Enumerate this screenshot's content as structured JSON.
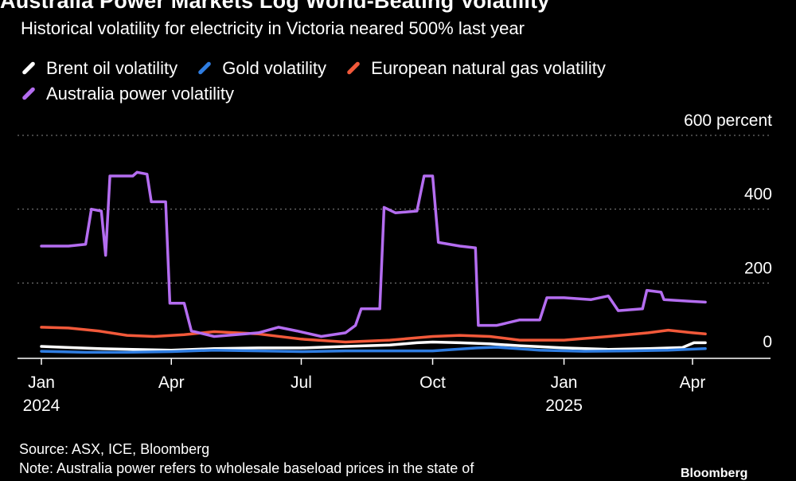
{
  "header": {
    "title": "Australia Power Markets Log World-Beating Volatility",
    "subtitle": "Historical volatility for electricity in Victoria neared 500% last year"
  },
  "footer": {
    "source": "Source: ASX, ICE, Bloomberg",
    "note": "Note: Australia power refers to wholesale baseload prices in the state of",
    "brand": "Bloomberg"
  },
  "chart_data": {
    "type": "line",
    "ylabel": "percent",
    "ylim": [
      0,
      600
    ],
    "yticks": [
      {
        "value": 600,
        "label": "600 percent"
      },
      {
        "value": 400,
        "label": "400"
      },
      {
        "value": 200,
        "label": "200"
      },
      {
        "value": 0,
        "label": "0"
      }
    ],
    "xlim": [
      "2024-01-01",
      "2025-04-10"
    ],
    "xticks": [
      {
        "date": "2024-01-01",
        "label": "Jan",
        "sublabel": "2024"
      },
      {
        "date": "2024-04-01",
        "label": "Apr",
        "sublabel": ""
      },
      {
        "date": "2024-07-01",
        "label": "Jul",
        "sublabel": ""
      },
      {
        "date": "2024-10-01",
        "label": "Oct",
        "sublabel": ""
      },
      {
        "date": "2025-01-01",
        "label": "Jan",
        "sublabel": "2025"
      },
      {
        "date": "2025-04-01",
        "label": "Apr",
        "sublabel": ""
      }
    ],
    "grid": "horizontal dotted",
    "legend_position": "top",
    "series": [
      {
        "name": "Brent oil volatility",
        "color": "#ffffff",
        "points": [
          [
            "2024-01-01",
            28
          ],
          [
            "2024-01-20",
            25
          ],
          [
            "2024-02-10",
            22
          ],
          [
            "2024-03-05",
            20
          ],
          [
            "2024-04-01",
            18
          ],
          [
            "2024-05-01",
            22
          ],
          [
            "2024-06-01",
            24
          ],
          [
            "2024-07-01",
            24
          ],
          [
            "2024-08-01",
            28
          ],
          [
            "2024-09-01",
            32
          ],
          [
            "2024-09-20",
            38
          ],
          [
            "2024-10-01",
            40
          ],
          [
            "2024-10-20",
            38
          ],
          [
            "2024-11-10",
            35
          ],
          [
            "2024-12-01",
            30
          ],
          [
            "2025-01-01",
            24
          ],
          [
            "2025-02-01",
            20
          ],
          [
            "2025-03-01",
            22
          ],
          [
            "2025-03-25",
            25
          ],
          [
            "2025-04-02",
            38
          ],
          [
            "2025-04-10",
            38
          ]
        ]
      },
      {
        "name": "Gold volatility",
        "color": "#2f7de1",
        "points": [
          [
            "2024-01-01",
            15
          ],
          [
            "2024-02-01",
            12
          ],
          [
            "2024-03-01",
            12
          ],
          [
            "2024-04-01",
            14
          ],
          [
            "2024-05-01",
            18
          ],
          [
            "2024-06-01",
            16
          ],
          [
            "2024-07-01",
            14
          ],
          [
            "2024-08-01",
            16
          ],
          [
            "2024-09-01",
            16
          ],
          [
            "2024-10-01",
            16
          ],
          [
            "2024-11-01",
            24
          ],
          [
            "2024-11-15",
            26
          ],
          [
            "2024-12-15",
            18
          ],
          [
            "2025-01-15",
            15
          ],
          [
            "2025-02-15",
            16
          ],
          [
            "2025-03-15",
            18
          ],
          [
            "2025-04-10",
            22
          ]
        ]
      },
      {
        "name": "European natural gas volatility",
        "color": "#f2593a",
        "points": [
          [
            "2024-01-01",
            80
          ],
          [
            "2024-01-20",
            78
          ],
          [
            "2024-02-10",
            70
          ],
          [
            "2024-03-01",
            58
          ],
          [
            "2024-03-20",
            55
          ],
          [
            "2024-04-10",
            60
          ],
          [
            "2024-05-01",
            68
          ],
          [
            "2024-06-01",
            62
          ],
          [
            "2024-07-01",
            48
          ],
          [
            "2024-08-01",
            40
          ],
          [
            "2024-09-01",
            45
          ],
          [
            "2024-10-01",
            55
          ],
          [
            "2024-10-20",
            58
          ],
          [
            "2024-11-10",
            55
          ],
          [
            "2024-12-01",
            45
          ],
          [
            "2025-01-01",
            45
          ],
          [
            "2025-02-01",
            55
          ],
          [
            "2025-03-01",
            65
          ],
          [
            "2025-03-15",
            72
          ],
          [
            "2025-04-01",
            65
          ],
          [
            "2025-04-10",
            62
          ]
        ]
      },
      {
        "name": "Australia power volatility",
        "color": "#b46df0",
        "points": [
          [
            "2024-01-01",
            300
          ],
          [
            "2024-01-20",
            300
          ],
          [
            "2024-02-01",
            305
          ],
          [
            "2024-02-05",
            400
          ],
          [
            "2024-02-12",
            395
          ],
          [
            "2024-02-15",
            275
          ],
          [
            "2024-02-18",
            490
          ],
          [
            "2024-03-05",
            490
          ],
          [
            "2024-03-08",
            500
          ],
          [
            "2024-03-15",
            495
          ],
          [
            "2024-03-18",
            420
          ],
          [
            "2024-03-28",
            420
          ],
          [
            "2024-03-31",
            145
          ],
          [
            "2024-04-10",
            145
          ],
          [
            "2024-04-15",
            70
          ],
          [
            "2024-05-01",
            55
          ],
          [
            "2024-06-01",
            65
          ],
          [
            "2024-06-15",
            80
          ],
          [
            "2024-06-28",
            70
          ],
          [
            "2024-07-15",
            55
          ],
          [
            "2024-08-01",
            65
          ],
          [
            "2024-08-08",
            85
          ],
          [
            "2024-08-12",
            130
          ],
          [
            "2024-08-25",
            130
          ],
          [
            "2024-08-28",
            405
          ],
          [
            "2024-09-05",
            390
          ],
          [
            "2024-09-20",
            395
          ],
          [
            "2024-09-25",
            490
          ],
          [
            "2024-10-01",
            490
          ],
          [
            "2024-10-05",
            310
          ],
          [
            "2024-10-20",
            300
          ],
          [
            "2024-10-31",
            295
          ],
          [
            "2024-11-02",
            85
          ],
          [
            "2024-11-15",
            85
          ],
          [
            "2024-12-01",
            100
          ],
          [
            "2024-12-15",
            100
          ],
          [
            "2024-12-20",
            160
          ],
          [
            "2025-01-01",
            160
          ],
          [
            "2025-01-20",
            155
          ],
          [
            "2025-02-01",
            165
          ],
          [
            "2025-02-08",
            125
          ],
          [
            "2025-02-25",
            130
          ],
          [
            "2025-02-28",
            180
          ],
          [
            "2025-03-10",
            175
          ],
          [
            "2025-03-12",
            155
          ],
          [
            "2025-04-01",
            150
          ],
          [
            "2025-04-10",
            148
          ]
        ]
      }
    ]
  }
}
